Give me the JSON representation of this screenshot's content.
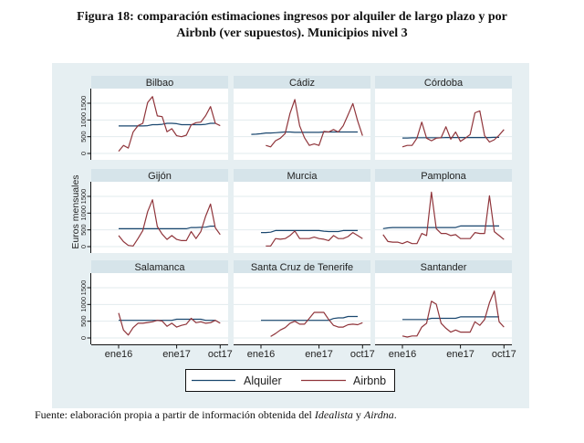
{
  "figure": {
    "title_line1": "Figura 18: comparación estimaciones ingresos por alquiler de largo plazo y por",
    "title_line2": "Airbnb (ver supuestos). Municipios nivel 3"
  },
  "source": {
    "prefix": "Fuente: elaboración propia a partir de información obtenida del ",
    "source1": "Idealista",
    "joiner": " y ",
    "source2": "Airdna",
    "suffix": "."
  },
  "colors": {
    "alquiler": "#1a476f",
    "airbnb": "#90353b",
    "graph_bg": "#e6eff2",
    "strip_bg": "#d6e4ea",
    "grid": "#e2ebee"
  },
  "chart_data": {
    "type": "line",
    "layout": "small multiples, 3 x 3",
    "ylabel": "Euros mensuales",
    "xlabel": "",
    "x_unit": "months relative to ene16",
    "xlim": [
      -5.7,
      22.6
    ],
    "ylim": [
      -190,
      1940
    ],
    "grid": true,
    "y_ticks": [
      0,
      500,
      1000,
      1500
    ],
    "x_ticks": [
      {
        "label": "ene16",
        "month": 0
      },
      {
        "label": "ene17",
        "month": 12
      },
      {
        "label": "oct17",
        "month": 21
      }
    ],
    "legend": {
      "position": "bottom",
      "entries": [
        "Alquiler",
        "Airbnb"
      ]
    },
    "panels": [
      {
        "name": "Bilbao",
        "series": [
          {
            "name": "Alquiler",
            "start": 0,
            "values": [
              820,
              820,
              820,
              820,
              820,
              820,
              830,
              860,
              860,
              870,
              900,
              900,
              890,
              860,
              860,
              860,
              860,
              860,
              870,
              900,
              900
            ]
          },
          {
            "name": "Airbnb",
            "start": 0,
            "values": [
              65,
              240,
              160,
              640,
              830,
              900,
              1520,
              1700,
              1120,
              1100,
              650,
              740,
              530,
              500,
              545,
              850,
              920,
              935,
              1130,
              1400,
              900,
              830
            ]
          }
        ]
      },
      {
        "name": "Cádiz",
        "series": [
          {
            "name": "Alquiler",
            "start": -2,
            "values": [
              570,
              575,
              590,
              610,
              610,
              620,
              630,
              640,
              640,
              630,
              630,
              630,
              630,
              630,
              630,
              640,
              640,
              640,
              640,
              640,
              640,
              640,
              640
            ]
          },
          {
            "name": "Airbnb",
            "start": 1,
            "values": [
              240,
              195,
              380,
              455,
              595,
              1195,
              1610,
              825,
              470,
              240,
              285,
              240,
              660,
              640,
              715,
              640,
              825,
              1150,
              1490,
              965,
              530
            ]
          }
        ]
      },
      {
        "name": "Córdoba",
        "series": [
          {
            "name": "Alquiler",
            "start": 0,
            "values": [
              460,
              460,
              465,
              470,
              470,
              470,
              470,
              470,
              470,
              475,
              475,
              475,
              475,
              475,
              475,
              475,
              475,
              475,
              475,
              480,
              480
            ]
          },
          {
            "name": "Airbnb",
            "start": 0,
            "values": [
              195,
              240,
              240,
              455,
              935,
              455,
              380,
              455,
              470,
              795,
              425,
              640,
              360,
              455,
              565,
              1215,
              1270,
              530,
              340,
              410,
              545,
              715
            ]
          }
        ]
      },
      {
        "name": "Gijón",
        "series": [
          {
            "name": "Alquiler",
            "start": 0,
            "values": [
              535,
              535,
              535,
              535,
              535,
              535,
              535,
              535,
              535,
              535,
              535,
              535,
              535,
              535,
              535,
              570,
              570,
              575,
              580,
              610,
              610
            ]
          },
          {
            "name": "Airbnb",
            "start": 0,
            "values": [
              330,
              150,
              35,
              20,
              240,
              480,
              1045,
              1400,
              600,
              375,
              215,
              330,
              215,
              180,
              180,
              450,
              240,
              450,
              910,
              1270,
              560,
              360
            ]
          }
        ]
      },
      {
        "name": "Murcia",
        "series": [
          {
            "name": "Alquiler",
            "start": 0,
            "values": [
              420,
              420,
              430,
              480,
              480,
              480,
              480,
              480,
              480,
              480,
              480,
              480,
              480,
              460,
              450,
              450,
              450,
              480,
              480,
              480,
              480
            ]
          },
          {
            "name": "Airbnb",
            "start": 1,
            "values": [
              18,
              18,
              240,
              220,
              240,
              330,
              465,
              240,
              240,
              240,
              285,
              240,
              220,
              180,
              330,
              240,
              240,
              300,
              420,
              330,
              240
            ]
          }
        ]
      },
      {
        "name": "Pamplona",
        "series": [
          {
            "name": "Alquiler",
            "start": -4,
            "values": [
              536,
              560,
              571,
              571,
              571,
              571,
              571,
              571,
              571,
              571,
              571,
              571,
              571,
              571,
              571,
              571,
              616,
              616,
              616,
              616,
              616,
              616,
              616,
              616,
              616
            ]
          },
          {
            "name": "Airbnb",
            "start": -4,
            "values": [
              357,
              152,
              134,
              134,
              89,
              152,
              89,
              89,
              393,
              330,
              1626,
              536,
              393,
              393,
              330,
              357,
              241,
              241,
              241,
              420,
              393,
              393,
              1518,
              447,
              330,
              214
            ]
          }
        ]
      },
      {
        "name": "Salamanca",
        "series": [
          {
            "name": "Alquiler",
            "start": 0,
            "values": [
              526,
              526,
              526,
              526,
              526,
              526,
              526,
              526,
              526,
              526,
              526,
              526,
              560,
              560,
              560,
              560,
              560,
              560,
              526,
              526,
              526
            ]
          },
          {
            "name": "Airbnb",
            "start": 0,
            "values": [
              745,
              237,
              88,
              307,
              439,
              439,
              460,
              482,
              526,
              504,
              350,
              439,
              324,
              377,
              412,
              587,
              456,
              482,
              439,
              456,
              526,
              440
            ]
          }
        ]
      },
      {
        "name": "Santa Cruz de Tenerife",
        "series": [
          {
            "name": "Alquiler",
            "start": 0,
            "values": [
              526,
              526,
              526,
              526,
              526,
              526,
              526,
              526,
              526,
              526,
              526,
              526,
              526,
              526,
              526,
              580,
              600,
              600,
              640,
              640,
              640
            ]
          },
          {
            "name": "Airbnb",
            "start": 2,
            "values": [
              45,
              131,
              237,
              307,
              439,
              500,
              412,
              412,
              587,
              763,
              763,
              763,
              552,
              377,
              324,
              324,
              395,
              412,
              395,
              456
            ]
          }
        ]
      },
      {
        "name": "Santander",
        "series": [
          {
            "name": "Alquiler",
            "start": 0,
            "values": [
              552,
              552,
              552,
              552,
              552,
              552,
              587,
              587,
              587,
              587,
              587,
              587,
              631,
              631,
              631,
              631,
              631,
              631,
              631,
              631,
              631
            ]
          },
          {
            "name": "Airbnb",
            "start": 0,
            "values": [
              61,
              26,
              61,
              61,
              324,
              439,
              1096,
              1008,
              439,
              289,
              175,
              237,
              175,
              175,
              175,
              482,
              377,
              552,
              1052,
              1403,
              482,
              324
            ]
          }
        ]
      }
    ]
  }
}
